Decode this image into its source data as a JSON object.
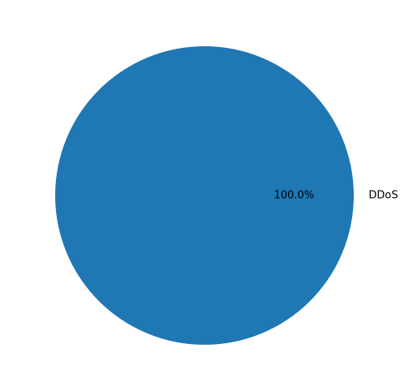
{
  "chart_data": {
    "type": "pie",
    "labels": [
      "DDoS"
    ],
    "values": [
      100
    ],
    "percent_labels": [
      "100.0%"
    ],
    "colors": [
      "#1f77b4"
    ]
  }
}
